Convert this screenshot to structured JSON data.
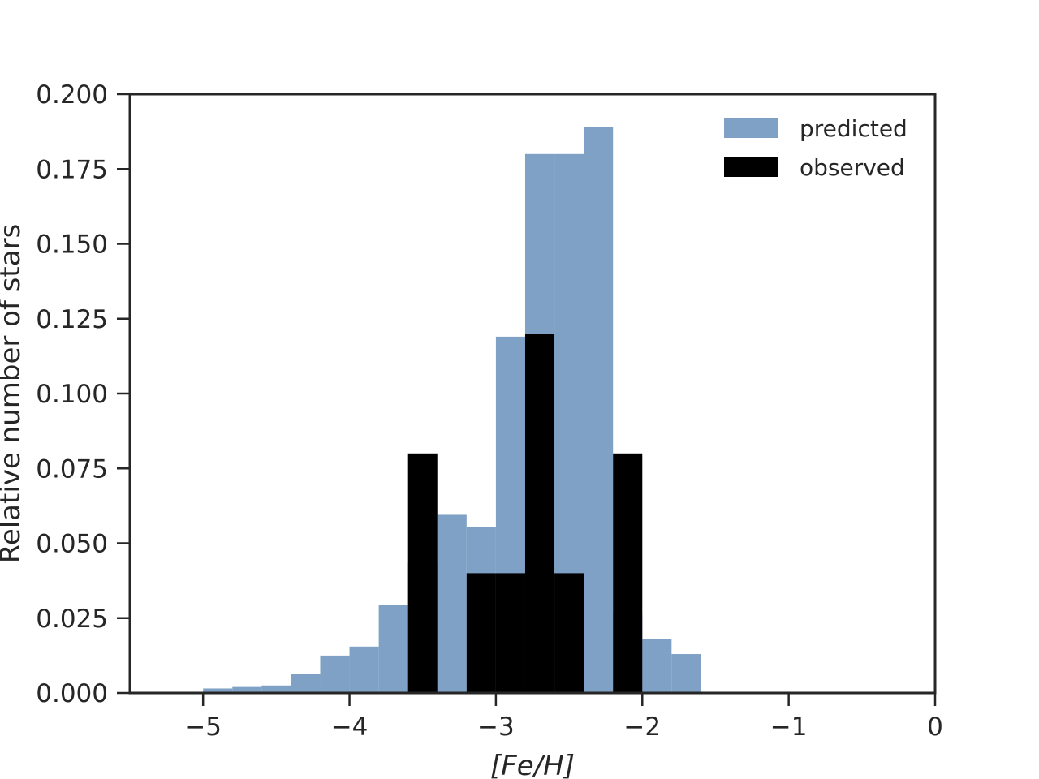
{
  "chart_data": {
    "type": "bar",
    "bin_width": 0.2,
    "xlabel": "[Fe/H]",
    "ylabel": "Relative number of stars",
    "xlim": [
      -5.5,
      0
    ],
    "ylim": [
      0,
      0.2
    ],
    "x_ticks": [
      -5,
      -4,
      -3,
      -2,
      -1,
      0
    ],
    "x_tick_labels": [
      "−5",
      "−4",
      "−3",
      "−2",
      "−1",
      "0"
    ],
    "y_ticks": [
      0,
      0.025,
      0.05,
      0.075,
      0.1,
      0.125,
      0.15,
      0.175,
      0.2
    ],
    "y_tick_labels": [
      "0.000",
      "0.025",
      "0.050",
      "0.075",
      "0.100",
      "0.125",
      "0.150",
      "0.175",
      "0.200"
    ],
    "legend_position": "top-right",
    "grid": false,
    "series": [
      {
        "name": "predicted",
        "color": "#7ea1c5",
        "bins": [
          {
            "x0": -5.0,
            "x1": -4.8,
            "value": 0.0015
          },
          {
            "x0": -4.8,
            "x1": -4.6,
            "value": 0.002
          },
          {
            "x0": -4.6,
            "x1": -4.4,
            "value": 0.0025
          },
          {
            "x0": -4.4,
            "x1": -4.2,
            "value": 0.0065
          },
          {
            "x0": -4.2,
            "x1": -4.0,
            "value": 0.0125
          },
          {
            "x0": -4.0,
            "x1": -3.8,
            "value": 0.0155
          },
          {
            "x0": -3.8,
            "x1": -3.6,
            "value": 0.0295
          },
          {
            "x0": -3.6,
            "x1": -3.4,
            "value": 0.0435
          },
          {
            "x0": -3.4,
            "x1": -3.2,
            "value": 0.0595
          },
          {
            "x0": -3.2,
            "x1": -3.0,
            "value": 0.0555
          },
          {
            "x0": -3.0,
            "x1": -2.8,
            "value": 0.119
          },
          {
            "x0": -2.8,
            "x1": -2.6,
            "value": 0.18
          },
          {
            "x0": -2.6,
            "x1": -2.4,
            "value": 0.18
          },
          {
            "x0": -2.4,
            "x1": -2.2,
            "value": 0.189
          },
          {
            "x0": -2.2,
            "x1": -2.0,
            "value": 0.0265
          },
          {
            "x0": -2.0,
            "x1": -1.8,
            "value": 0.018
          },
          {
            "x0": -1.8,
            "x1": -1.6,
            "value": 0.013
          }
        ]
      },
      {
        "name": "observed",
        "color": "#000000",
        "bins": [
          {
            "x0": -3.6,
            "x1": -3.4,
            "value": 0.08
          },
          {
            "x0": -3.2,
            "x1": -3.0,
            "value": 0.04
          },
          {
            "x0": -3.0,
            "x1": -2.8,
            "value": 0.04
          },
          {
            "x0": -2.8,
            "x1": -2.6,
            "value": 0.12
          },
          {
            "x0": -2.6,
            "x1": -2.4,
            "value": 0.04
          },
          {
            "x0": -2.2,
            "x1": -2.0,
            "value": 0.08
          }
        ]
      }
    ]
  }
}
